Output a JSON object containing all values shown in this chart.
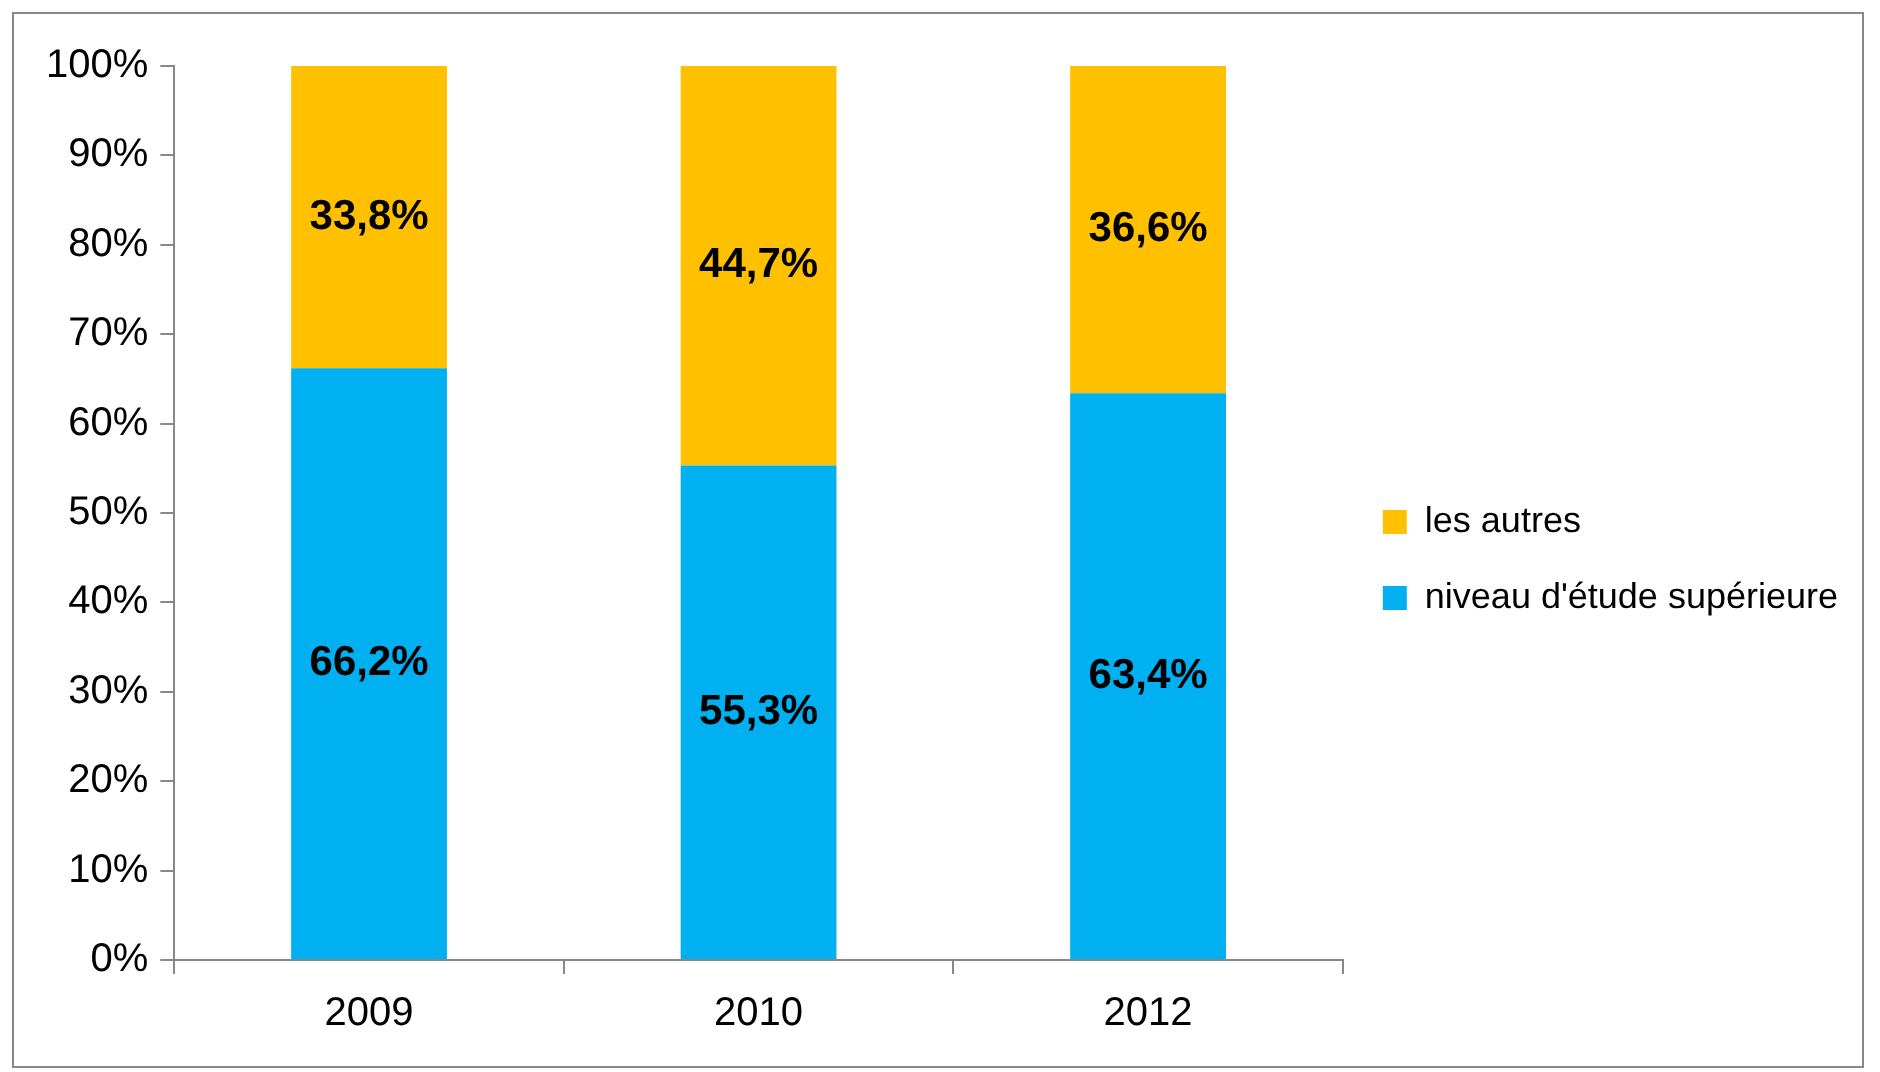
{
  "chart_data": {
    "type": "bar",
    "stacked": true,
    "categories": [
      "2009",
      "2010",
      "2012"
    ],
    "series": [
      {
        "name": "niveau d'étude supérieure",
        "color": "#00b0f0",
        "values": [
          66.2,
          55.3,
          63.4
        ],
        "value_labels": [
          "66,2%",
          "55,3%",
          "63,4%"
        ]
      },
      {
        "name": "les autres",
        "color": "#ffc000",
        "values": [
          33.8,
          44.7,
          36.6
        ],
        "value_labels": [
          "33,8%",
          "44,7%",
          "36,6%"
        ]
      }
    ],
    "ylim": [
      0,
      100
    ],
    "yticks": [
      {
        "value": 0,
        "label": "0%"
      },
      {
        "value": 10,
        "label": "10%"
      },
      {
        "value": 20,
        "label": "20%"
      },
      {
        "value": 30,
        "label": "30%"
      },
      {
        "value": 40,
        "label": "40%"
      },
      {
        "value": 50,
        "label": "50%"
      },
      {
        "value": 60,
        "label": "60%"
      },
      {
        "value": 70,
        "label": "70%"
      },
      {
        "value": 80,
        "label": "80%"
      },
      {
        "value": 90,
        "label": "90%"
      },
      {
        "value": 100,
        "label": "100%"
      }
    ],
    "grid": false,
    "legend": "right"
  }
}
